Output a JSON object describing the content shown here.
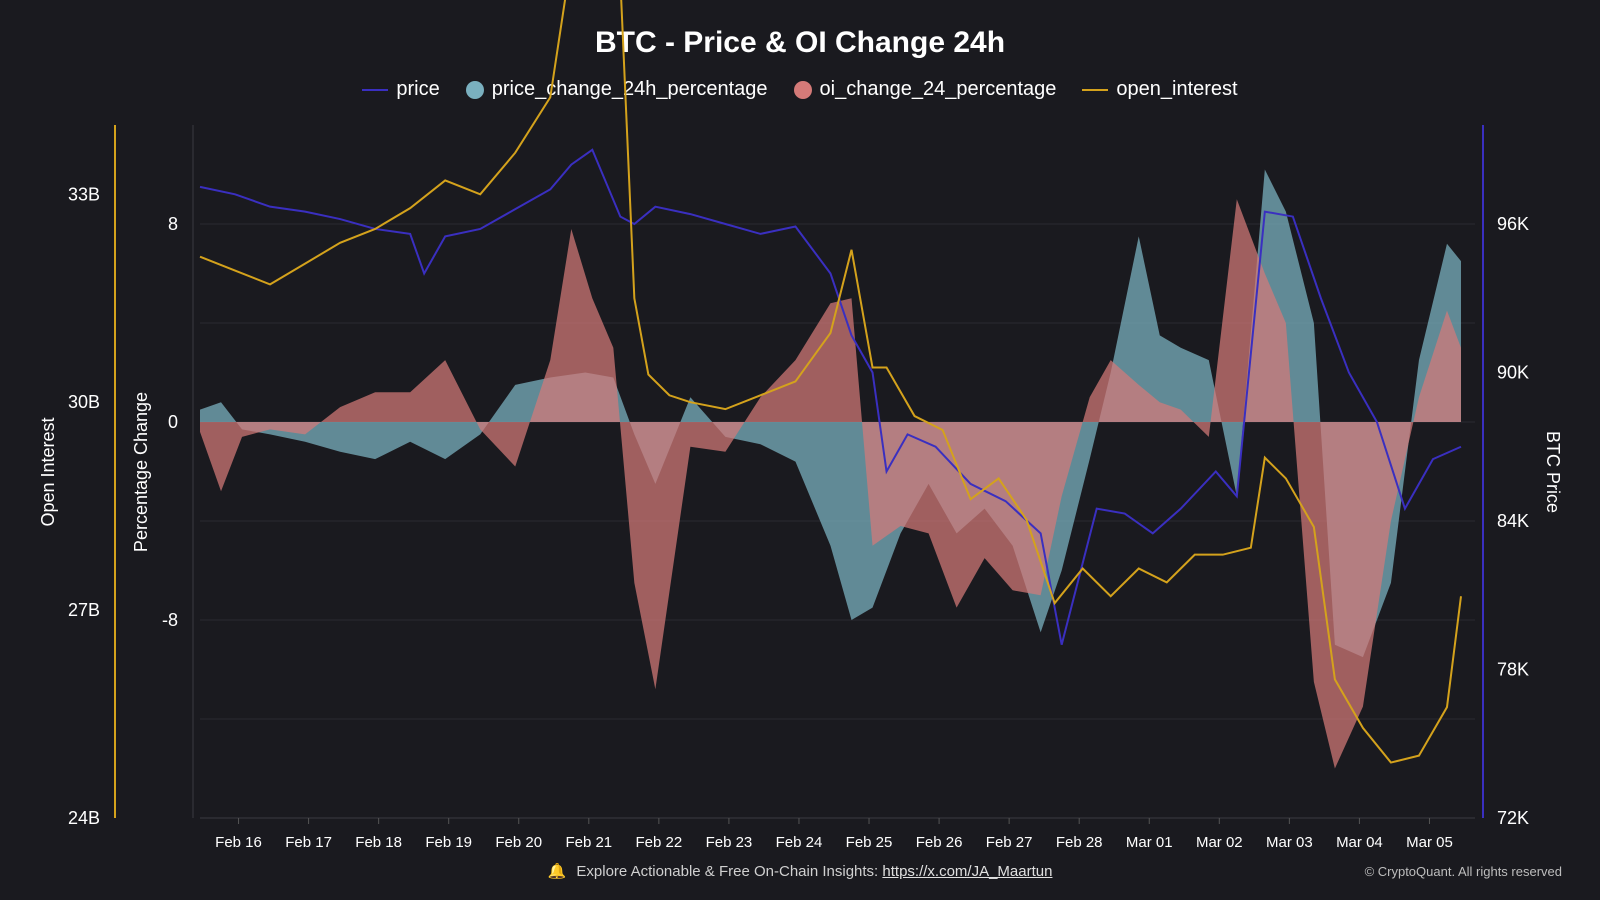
{
  "chart_data": {
    "type": "area+line",
    "title": "BTC - Price & OI Change 24h",
    "legend": [
      {
        "label": "price",
        "kind": "line",
        "color": "#3a2fc0"
      },
      {
        "label": "price_change_24h_percentage",
        "kind": "dot",
        "color": "#7ab0bf"
      },
      {
        "label": "oi_change_24_percentage",
        "kind": "dot",
        "color": "#d47a78"
      },
      {
        "label": "open_interest",
        "kind": "line",
        "color": "#d4a21c"
      }
    ],
    "axes": {
      "open_interest": {
        "label": "Open Interest",
        "range": [
          24,
          34
        ],
        "ticks": [
          "33B",
          "30B",
          "27B",
          "24B"
        ],
        "tick_values": [
          33,
          30,
          27,
          24
        ]
      },
      "percentage": {
        "label": "Percentage Change",
        "range": [
          -16,
          12
        ],
        "ticks": [
          "8",
          "0",
          "-8"
        ],
        "tick_values": [
          8,
          0,
          -8
        ]
      },
      "price": {
        "label": "BTC Price",
        "range": [
          72,
          100
        ],
        "ticks": [
          "96K",
          "90K",
          "84K",
          "78K",
          "72K"
        ],
        "tick_values": [
          96,
          90,
          84,
          78,
          72
        ]
      }
    },
    "x_ticks": [
      "Feb 16",
      "Feb 17",
      "Feb 18",
      "Feb 19",
      "Feb 20",
      "Feb 21",
      "Feb 22",
      "Feb 23",
      "Feb 24",
      "Feb 25",
      "Feb 26",
      "Feb 27",
      "Feb 28",
      "Mar 01",
      "Mar 02",
      "Mar 03",
      "Mar 04",
      "Mar 05"
    ],
    "x_range_days": [
      0,
      18.2
    ],
    "series": {
      "price": {
        "unit": "K USD",
        "x": [
          0,
          0.5,
          1,
          1.5,
          2,
          2.5,
          3,
          3.2,
          3.5,
          4,
          4.5,
          5,
          5.3,
          5.6,
          6.0,
          6.2,
          6.5,
          7,
          7.5,
          8,
          8.5,
          9.0,
          9.3,
          9.6,
          9.8,
          10.1,
          10.5,
          11,
          11.5,
          12.0,
          12.3,
          12.8,
          13.2,
          13.6,
          14,
          14.5,
          14.8,
          15.2,
          15.6,
          16.0,
          16.4,
          16.8,
          17.2,
          17.6,
          18.0
        ],
        "y": [
          97.5,
          97.2,
          96.7,
          96.5,
          96.2,
          95.8,
          95.6,
          94.0,
          95.5,
          95.8,
          96.6,
          97.4,
          98.4,
          99.0,
          96.3,
          96.0,
          96.7,
          96.4,
          96.0,
          95.6,
          95.9,
          94.0,
          91.5,
          90.0,
          86.0,
          87.5,
          87.0,
          85.5,
          84.8,
          83.5,
          79.0,
          84.5,
          84.3,
          83.5,
          84.5,
          86.0,
          85.0,
          96.5,
          96.3,
          93.0,
          90.0,
          88.0,
          84.5,
          86.5,
          87.0
        ]
      },
      "price_change_24h_percentage": {
        "unit": "%",
        "x": [
          0,
          0.3,
          0.6,
          1,
          1.5,
          2,
          2.5,
          3,
          3.5,
          4,
          4.5,
          5,
          5.5,
          5.9,
          6.2,
          6.5,
          7,
          7.5,
          8,
          8.5,
          9.0,
          9.3,
          9.6,
          10.0,
          10.4,
          10.8,
          11.2,
          11.6,
          12.0,
          12.3,
          12.7,
          13.0,
          13.4,
          13.7,
          14.0,
          14.4,
          14.8,
          15.2,
          15.5,
          15.9,
          16.2,
          16.6,
          17.0,
          17.4,
          17.8,
          18.0
        ],
        "y": [
          0.5,
          0.8,
          -0.3,
          -0.5,
          -0.8,
          -1.2,
          -1.5,
          -0.8,
          -1.5,
          -0.5,
          1.5,
          1.8,
          2.0,
          1.8,
          -0.5,
          -2.5,
          1.0,
          -0.6,
          -0.9,
          -1.6,
          -5.0,
          -8.0,
          -7.5,
          -4.5,
          -2.5,
          -4.5,
          -3.5,
          -5.0,
          -8.5,
          -6.0,
          -1.5,
          2.0,
          7.5,
          3.5,
          3.0,
          2.5,
          -3.0,
          10.2,
          8.5,
          4.0,
          -9.0,
          -9.5,
          -6.5,
          2.5,
          7.2,
          6.5
        ]
      },
      "oi_change_24_percentage": {
        "unit": "%",
        "x": [
          0,
          0.3,
          0.6,
          1,
          1.5,
          2,
          2.5,
          3,
          3.5,
          4,
          4.5,
          5,
          5.3,
          5.6,
          5.9,
          6.2,
          6.5,
          7,
          7.5,
          8,
          8.5,
          9.0,
          9.3,
          9.6,
          10.0,
          10.4,
          10.8,
          11.2,
          11.6,
          12.0,
          12.3,
          12.7,
          13.0,
          13.4,
          13.7,
          14.0,
          14.4,
          14.8,
          15.2,
          15.5,
          15.9,
          16.2,
          16.6,
          17.0,
          17.4,
          17.8,
          18.0
        ],
        "y": [
          -0.4,
          -2.8,
          -0.6,
          -0.3,
          -0.5,
          0.6,
          1.2,
          1.2,
          2.5,
          -0.3,
          -1.8,
          2.5,
          7.8,
          5.0,
          3.0,
          -6.5,
          -10.8,
          -1.0,
          -1.2,
          1.0,
          2.5,
          4.8,
          5.0,
          -5.0,
          -4.2,
          -4.5,
          -7.5,
          -5.5,
          -6.8,
          -7.0,
          -3.0,
          1.0,
          2.5,
          1.5,
          0.8,
          0.5,
          -0.6,
          9.0,
          6.0,
          4.0,
          -10.5,
          -14.0,
          -11.5,
          -4.0,
          1.0,
          4.5,
          3.0
        ]
      },
      "open_interest": {
        "unit": "B USD",
        "x": [
          0,
          0.5,
          1,
          1.5,
          2,
          2.5,
          3,
          3.5,
          4,
          4.5,
          5,
          5.3,
          5.6,
          6.0,
          6.2,
          6.4,
          6.7,
          7,
          7.5,
          8,
          8.5,
          9.0,
          9.3,
          9.6,
          9.8,
          10.2,
          10.6,
          11.0,
          11.4,
          11.8,
          12.2,
          12.6,
          13.0,
          13.4,
          13.8,
          14.2,
          14.6,
          15.0,
          15.2,
          15.5,
          15.9,
          16.2,
          16.6,
          17.0,
          17.4,
          17.8,
          18.0
        ],
        "y": [
          32.1,
          31.9,
          31.7,
          32.0,
          32.3,
          32.5,
          32.8,
          33.2,
          33.0,
          33.6,
          34.4,
          36.4,
          36.3,
          36.1,
          31.5,
          30.4,
          30.1,
          30.0,
          29.9,
          30.1,
          30.3,
          31.0,
          32.2,
          30.5,
          30.5,
          29.8,
          29.6,
          28.6,
          28.9,
          28.3,
          27.1,
          27.6,
          27.2,
          27.6,
          27.4,
          27.8,
          27.8,
          27.9,
          29.2,
          28.9,
          28.2,
          26.0,
          25.3,
          24.8,
          24.9,
          25.6,
          27.2
        ]
      }
    }
  },
  "footer": {
    "text": "Explore Actionable & Free On-Chain Insights:",
    "link": "https://x.com/JA_Maartun",
    "copyright": "© CryptoQuant. All rights reserved"
  },
  "colors": {
    "background": "#1a1a1f",
    "grid": "#2a2a30",
    "price": "#3a2fc0",
    "price_change_fill": "#7ab0bf",
    "oi_change_fill": "#d47a78",
    "open_interest": "#d4a21c"
  }
}
